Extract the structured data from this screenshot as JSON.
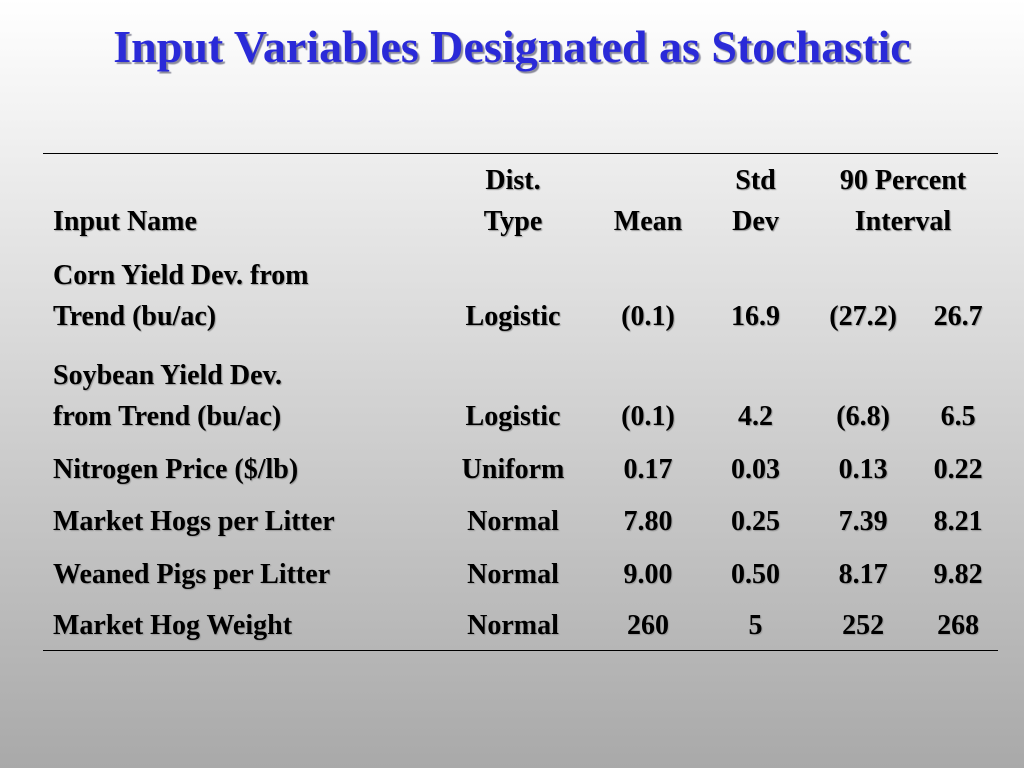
{
  "title": "Input Variables Designated as Stochastic",
  "table": {
    "header": [
      "Input Name",
      "Dist.\nType",
      "Mean",
      "Std\nDev",
      "90 Percent\nInterval"
    ],
    "rows": [
      [
        "Corn Yield Dev. from\nTrend (bu/ac)",
        "Logistic",
        "(0.1)",
        "16.9",
        "(27.2)",
        "26.7"
      ],
      [
        "Soybean Yield Dev.\nfrom Trend (bu/ac)",
        "Logistic",
        "(0.1)",
        "4.2",
        "(6.8)",
        "6.5"
      ],
      [
        "Nitrogen Price ($/lb)",
        "Uniform",
        "0.17",
        "0.03",
        "0.13",
        "0.22"
      ],
      [
        "Market Hogs per Litter",
        "Normal",
        "7.80",
        "0.25",
        "7.39",
        "8.21"
      ],
      [
        "Weaned Pigs per Litter",
        "Normal",
        "9.00",
        "0.50",
        "8.17",
        "9.82"
      ],
      [
        "Market Hog Weight",
        "Normal",
        "260",
        "5",
        "252",
        "268"
      ]
    ]
  }
}
